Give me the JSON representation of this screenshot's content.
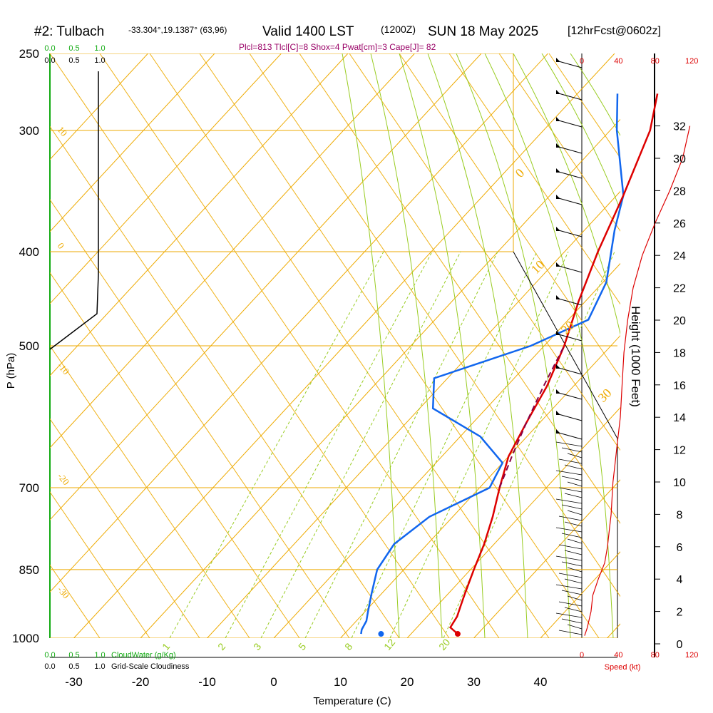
{
  "header": {
    "station": "#2: Tulbach",
    "coords": "-33.304°,19.1387° (63,96)",
    "valid": "Valid 1400 LST",
    "zulu": "(1200Z)",
    "date": "SUN 18 May 2025",
    "fcst": "[12hrFcst@0602z]"
  },
  "indices": "Plcl=813 Tlcl[C]=8 Shox=4 Pwat[cm]=3 Cape[J]= 82",
  "colors": {
    "temperature": "#dd0000",
    "dewpoint": "#1166ee",
    "parcel": "#880044",
    "isotherm": "#eeaa00",
    "dry_adiabat": "#99cc22",
    "cloud": "#11aa11",
    "wind_speed": "#dd0000"
  },
  "chart_data": {
    "type": "skew-t",
    "xlabel": "Temperature (C)",
    "ylabel": "P (hPa)",
    "right_label": "Height (1000 Feet)",
    "x_ticks": [
      "-30",
      "-20",
      "-10",
      "0",
      "10",
      "20",
      "30",
      "40"
    ],
    "p_ticks": [
      "250",
      "300",
      "400",
      "500",
      "700",
      "850",
      "1000"
    ],
    "height_ticks": [
      "0",
      "2",
      "4",
      "6",
      "8",
      "10",
      "12",
      "14",
      "16",
      "18",
      "20",
      "22",
      "24",
      "26",
      "28",
      "30",
      "32"
    ],
    "speed_ticks": [
      "0",
      "40",
      "80",
      "120"
    ],
    "speed_ticks_bottom": [
      "0",
      "40",
      "80",
      "120"
    ],
    "speed_label": "Speed (kt)",
    "cloudwater_ticks": [
      "0.0",
      "0.5",
      "1.0"
    ],
    "cloudiness_ticks": [
      "0.0",
      "0.5",
      "1.0"
    ],
    "cloudwater_label": "CloudWater (g/Kg)",
    "cloudiness_label": "Grid-Scale Cloudiness",
    "isotherm_labels_left": [
      "10",
      "0",
      "-10",
      "-20",
      "-30"
    ],
    "isotherm_labels_right": [
      "0",
      "10",
      "20",
      "30"
    ],
    "mixing_ratio_labels": [
      "1",
      "2",
      "3",
      "5",
      "8",
      "12",
      "20"
    ],
    "temperature": {
      "name": "Temperature",
      "p": [
        990,
        975,
        950,
        925,
        900,
        850,
        800,
        750,
        700,
        650,
        600,
        550,
        500,
        450,
        400,
        350,
        300,
        275
      ],
      "t": [
        27,
        25,
        24.5,
        23.5,
        22.5,
        20.5,
        18.5,
        16,
        13,
        10,
        8,
        6,
        3,
        -1,
        -5,
        -9,
        -14,
        -18
      ]
    },
    "dewpoint": {
      "name": "Dewpoint",
      "p": [
        990,
        980,
        960,
        940,
        900,
        850,
        800,
        750,
        700,
        660,
        620,
        580,
        540,
        500,
        470,
        430,
        380,
        350,
        300,
        275
      ],
      "td": [
        12.5,
        12,
        11.5,
        10.5,
        8.5,
        6,
        5,
        6.5,
        11.5,
        10,
        3,
        -8,
        -12,
        -2,
        3,
        0.5,
        -5.5,
        -9,
        -19,
        -24
      ]
    },
    "parcel": {
      "name": "Parcel",
      "p": [
        700,
        650,
        600,
        550,
        500
      ],
      "t": [
        13,
        10.5,
        8,
        5.5,
        3
      ]
    },
    "surface_temp": 27,
    "surface_dewpoint": 15.5,
    "wind_speed_profile": {
      "height_kft": [
        0.5,
        1,
        2,
        3,
        4,
        5,
        6,
        7,
        8,
        9,
        10,
        11,
        12,
        13,
        14,
        16,
        18,
        20,
        22,
        24,
        26,
        28,
        30,
        32
      ],
      "speed_kt": [
        3,
        6,
        10,
        12,
        18,
        25,
        28,
        30,
        32,
        33,
        34,
        36,
        38,
        40,
        42,
        44,
        46,
        50,
        56,
        66,
        80,
        96,
        110,
        118
      ]
    }
  }
}
